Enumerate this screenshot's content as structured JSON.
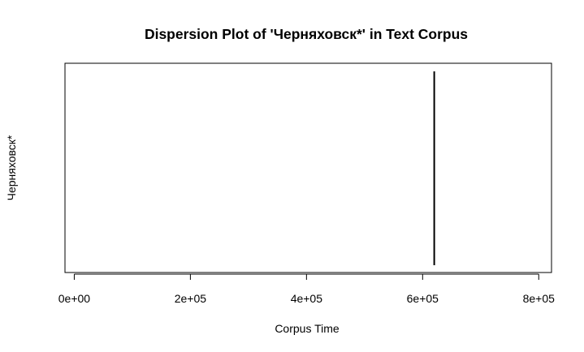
{
  "chart_data": {
    "type": "scatter",
    "title": "Dispersion Plot of 'Черняховск*' in Text Corpus",
    "xlabel": "Corpus Time",
    "ylabel": "Черняховск*",
    "xlim": [
      -16000,
      822000
    ],
    "x_ticks": [
      0,
      200000,
      400000,
      600000,
      800000
    ],
    "x_tick_labels": [
      "0e+00",
      "2e+05",
      "4e+05",
      "6e+05",
      "8e+05"
    ],
    "series": [
      {
        "marker": "vertical-line",
        "x": [
          620000
        ]
      }
    ],
    "grid": false,
    "legend": "none",
    "line_color": "#000000"
  }
}
